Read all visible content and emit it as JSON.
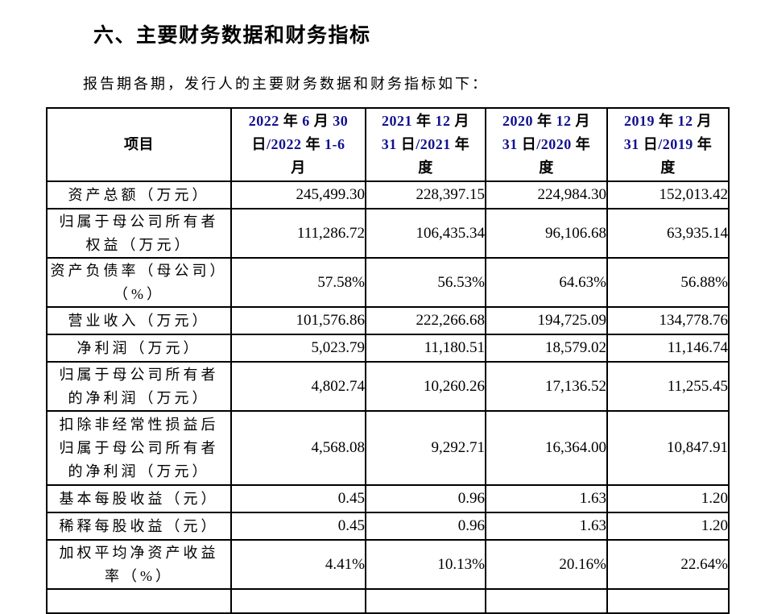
{
  "page": {
    "section_title": "六、主要财务数据和财务指标",
    "intro": "报告期各期，发行人的主要财务数据和财务指标如下："
  },
  "table": {
    "columns": [
      "项目",
      "2022 年 6 月 30\n日/2022 年 1-6\n月",
      "2021 年 12 月\n31 日/2021 年\n度",
      "2020 年 12 月\n31 日/2020 年\n度",
      "2019 年 12 月\n31 日/2019 年\n度"
    ],
    "rows": [
      {
        "item": "资产总额（万元）",
        "values": [
          "245,499.30",
          "228,397.15",
          "224,984.30",
          "152,013.42"
        ]
      },
      {
        "item": "归属于母公司所有者\n权益（万元）",
        "values": [
          "111,286.72",
          "106,435.34",
          "96,106.68",
          "63,935.14"
        ]
      },
      {
        "item": "资产负债率（母公司）\n（%）",
        "values": [
          "57.58%",
          "56.53%",
          "64.63%",
          "56.88%"
        ]
      },
      {
        "item": "营业收入（万元）",
        "values": [
          "101,576.86",
          "222,266.68",
          "194,725.09",
          "134,778.76"
        ]
      },
      {
        "item": "净利润（万元）",
        "values": [
          "5,023.79",
          "11,180.51",
          "18,579.02",
          "11,146.74"
        ]
      },
      {
        "item": "归属于母公司所有者\n的净利润（万元）",
        "values": [
          "4,802.74",
          "10,260.26",
          "17,136.52",
          "11,255.45"
        ]
      },
      {
        "item": "扣除非经常性损益后\n归属于母公司所有者\n的净利润（万元）",
        "values": [
          "4,568.08",
          "9,292.71",
          "16,364.00",
          "10,847.91"
        ]
      },
      {
        "item": "基本每股收益（元）",
        "values": [
          "0.45",
          "0.96",
          "1.63",
          "1.20"
        ]
      },
      {
        "item": "稀释每股收益（元）",
        "values": [
          "0.45",
          "0.96",
          "1.63",
          "1.20"
        ]
      },
      {
        "item": "加权平均净资产收益\n率（%）",
        "values": [
          "4.41%",
          "10.13%",
          "20.16%",
          "22.64%"
        ]
      }
    ]
  },
  "colors": {
    "header_digit": "#12128f",
    "text": "#000000",
    "border": "#000000",
    "background": "#ffffff"
  }
}
